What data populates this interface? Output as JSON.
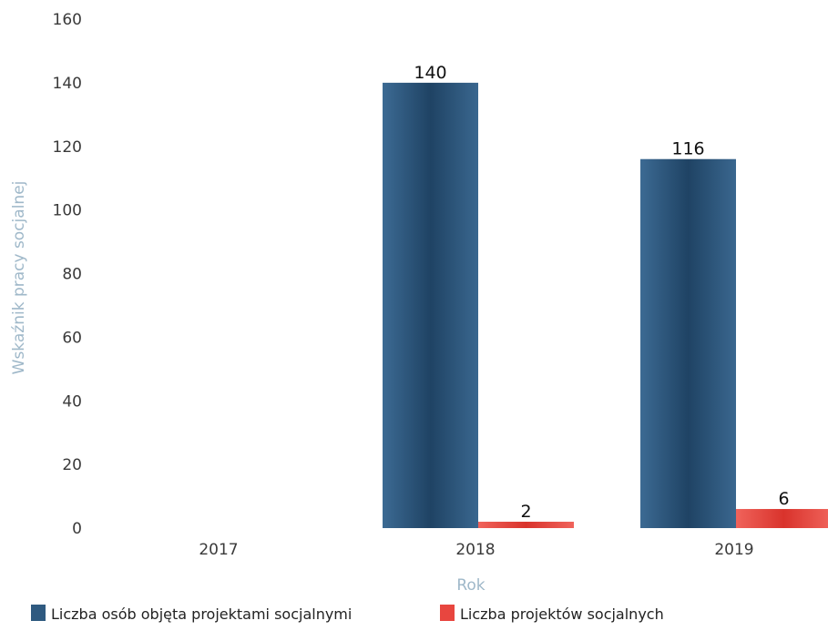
{
  "chart_data": {
    "type": "bar",
    "title": "",
    "categories": [
      "2017",
      "2018",
      "2019"
    ],
    "series": [
      {
        "name": "Liczba osób objęta projektami socjalnymi",
        "values": [
          0,
          140,
          116
        ],
        "color": "#2f5a80"
      },
      {
        "name": "Liczba projektów socjalnych",
        "values": [
          0,
          2,
          6
        ],
        "color": "#e8463f"
      }
    ],
    "data_labels": [
      [
        null,
        "140",
        "116"
      ],
      [
        null,
        "2",
        "6"
      ]
    ],
    "xlabel": "Rok",
    "ylabel": "Wskaźnik pracy socjalnej",
    "ylim": [
      0,
      160
    ],
    "yticks": [
      0,
      20,
      40,
      60,
      80,
      100,
      120,
      140,
      160
    ],
    "grid": false,
    "legend": "bottom-left"
  }
}
